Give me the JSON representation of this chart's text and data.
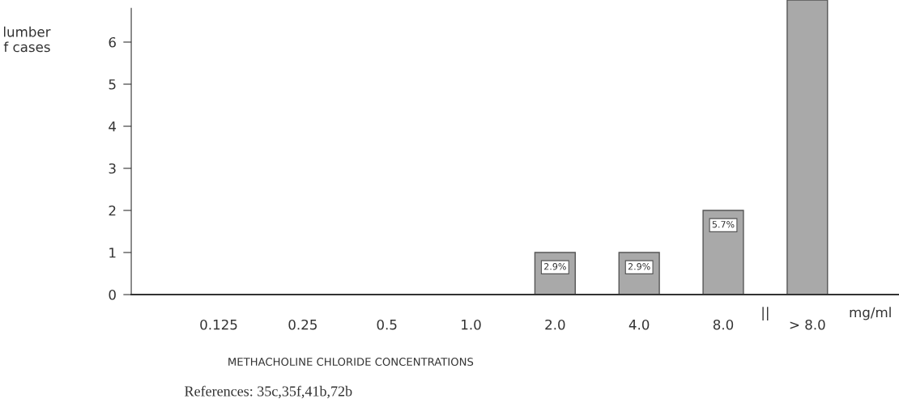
{
  "chart_data": {
    "type": "bar",
    "categories": [
      "0.125",
      "0.25",
      "0.5",
      "1.0",
      "2.0",
      "4.0",
      "8.0",
      "> 8.0"
    ],
    "values": [
      0,
      0,
      0,
      0,
      1,
      1,
      2,
      7
    ],
    "color": "#a9a9a9",
    "ylabel": "lumber\nf cases",
    "xlabel": "METHACHOLINE CHLORIDE CONCENTRATIONS",
    "ylim": [
      0,
      7
    ],
    "yticks": [
      0,
      1,
      2,
      3,
      4,
      5,
      6
    ],
    "annotations": [
      "||",
      "mg/ml",
      "References: 35c,35f,41b,72b",
      {
        "text": "2.9%",
        "x": "2.0",
        "y": 1
      },
      {
        "text": "2.9%",
        "x": "4.0",
        "y": 1
      },
      {
        "text": "5.7%",
        "x": "8.0",
        "y": 2
      }
    ],
    "grid": false,
    "legend": false
  }
}
